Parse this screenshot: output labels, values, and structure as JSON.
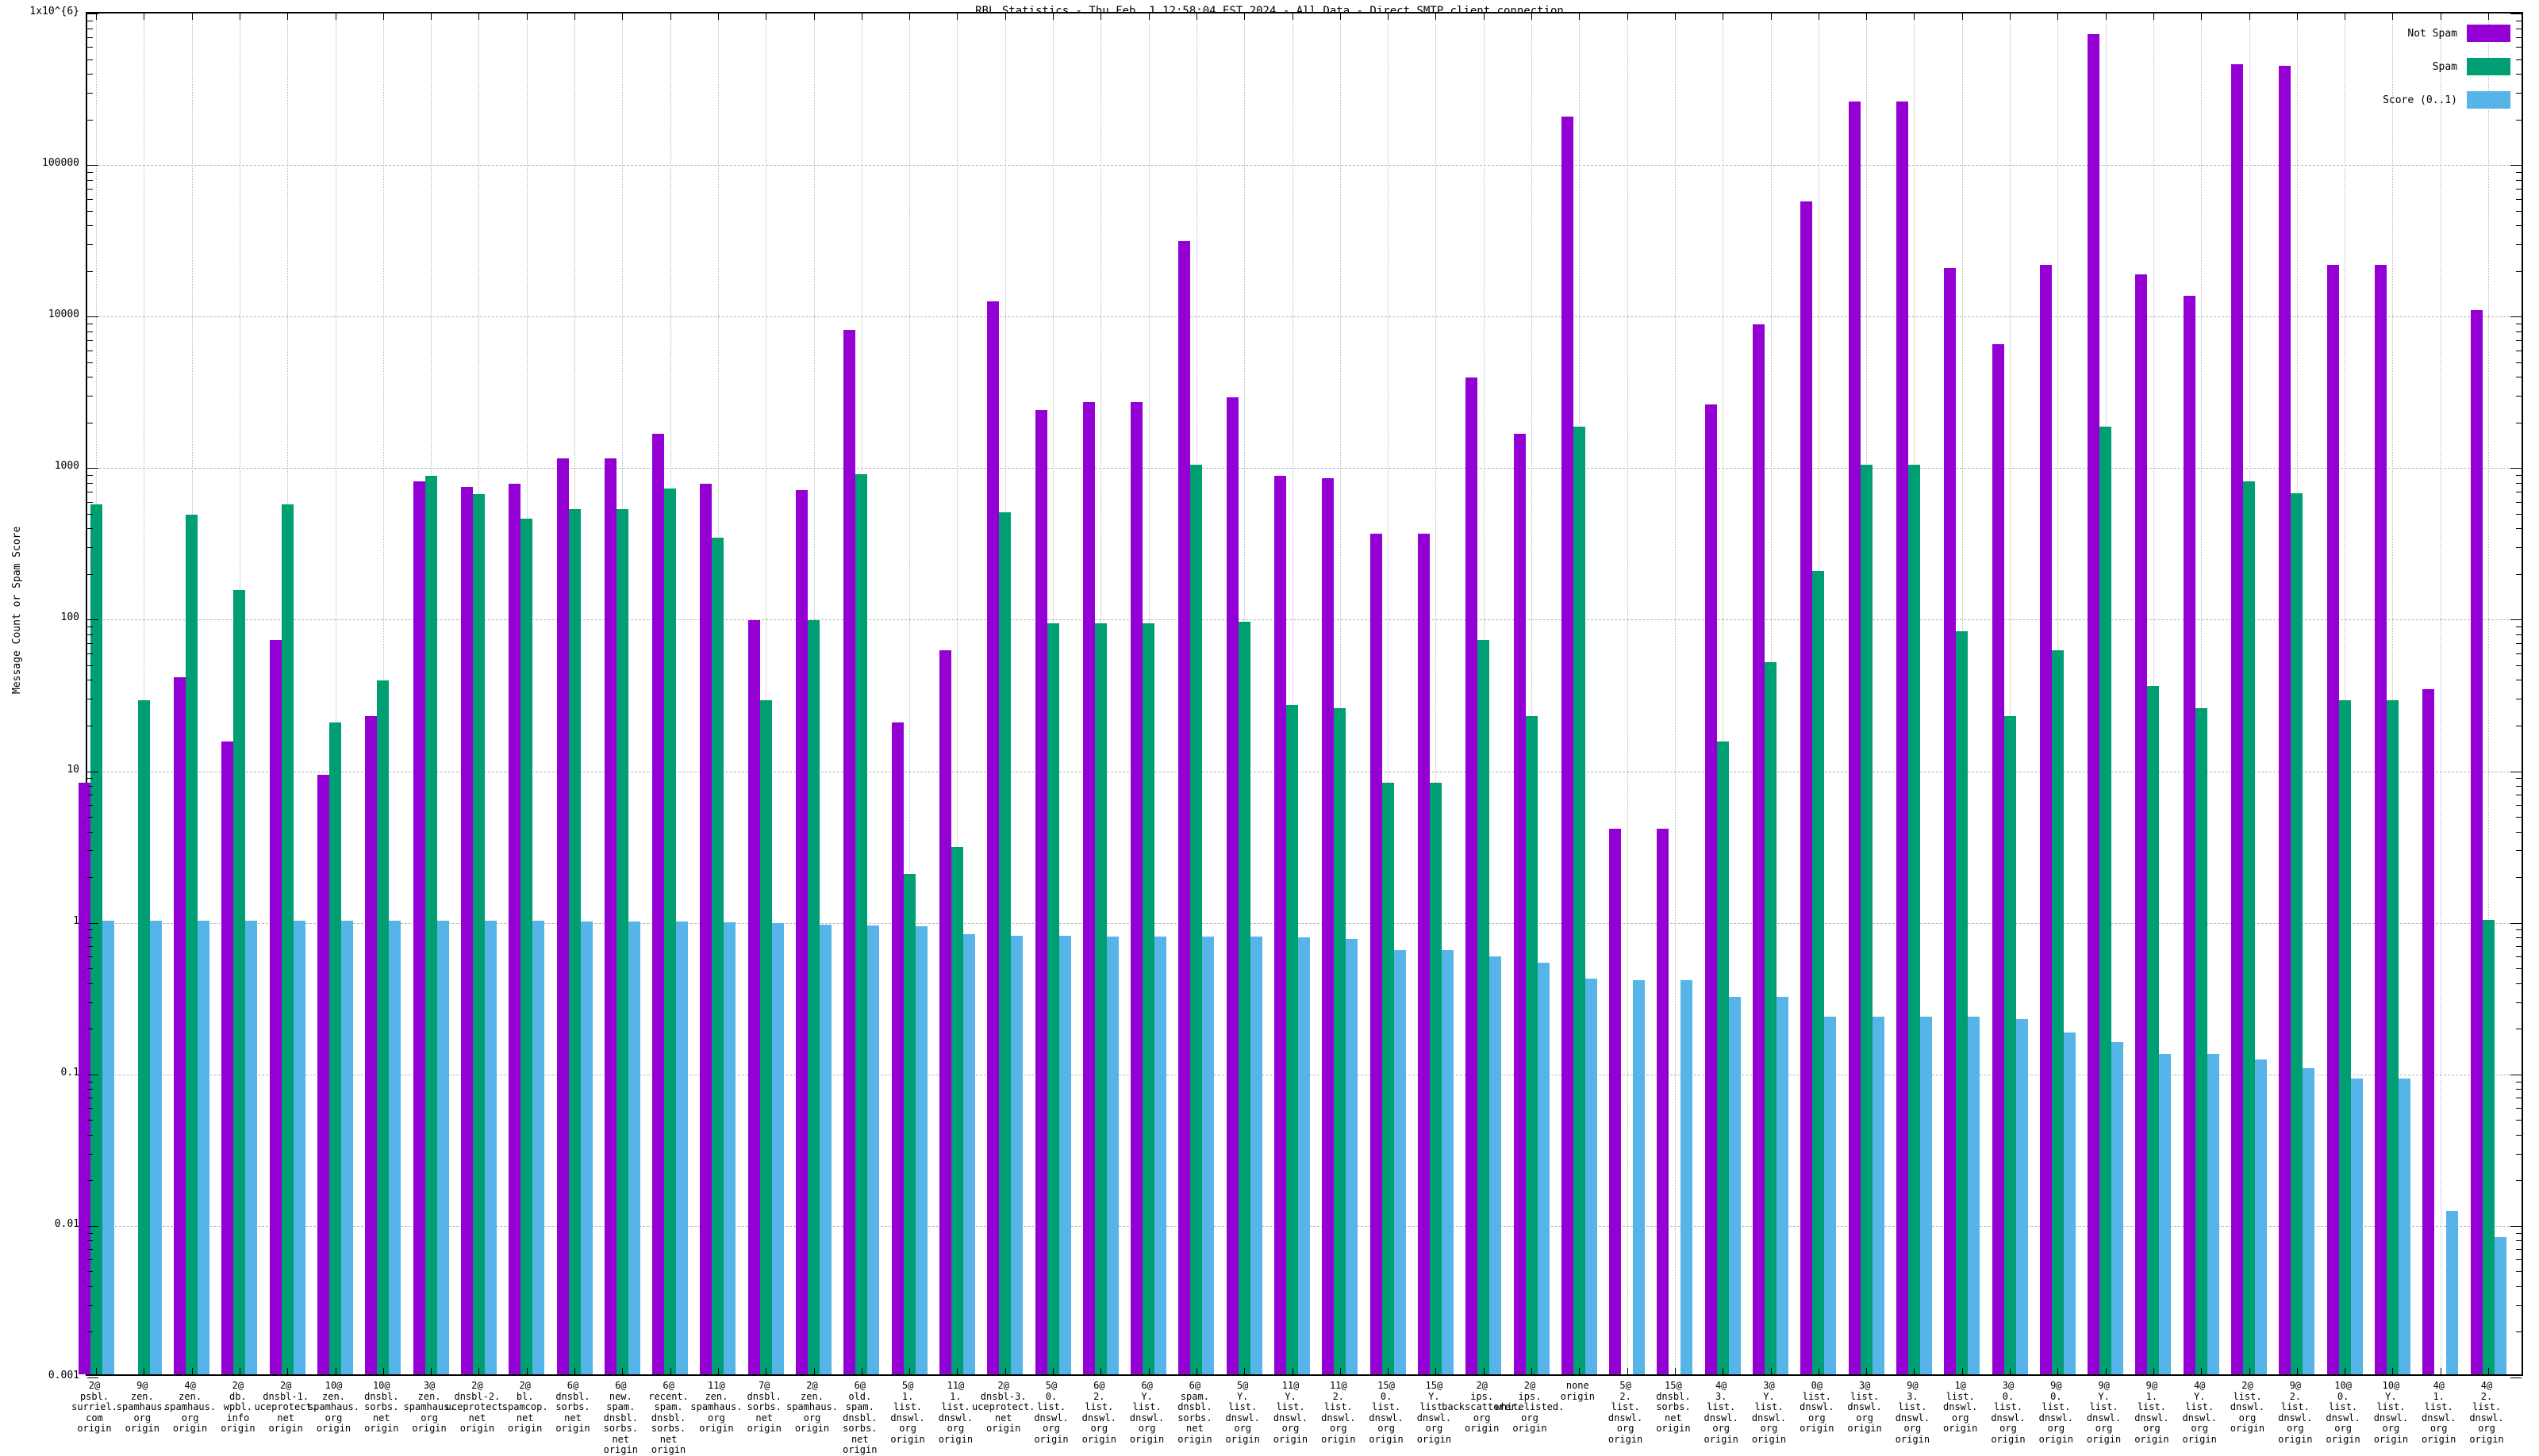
{
  "title": "RBL Statistics - Thu Feb  1 12:58:04 EST 2024 - All Data - Direct SMTP client connection",
  "y_axis": {
    "label": "Message Count or Spam Score",
    "tick_labels": [
      "1x10^{6}",
      "100000",
      "10000",
      "1000",
      "100",
      "10",
      "1",
      "0.1",
      "0.01",
      "0.001"
    ],
    "min_exponent": -3,
    "max_exponent": 6
  },
  "legend": {
    "position": "top-right-inside",
    "entries": [
      {
        "label": "Not Spam",
        "color": "#9400D3"
      },
      {
        "label": "Spam",
        "color": "#009E73"
      },
      {
        "label": "Score (0..1)",
        "color": "#56B4E9"
      }
    ]
  },
  "colors": {
    "not_spam": "#9400D3",
    "spam": "#009E73",
    "score": "#56B4E9",
    "grid": "#b9b9b9",
    "axis": "#000000",
    "background": "#ffffff"
  },
  "chart_data": {
    "type": "bar",
    "scale": "log",
    "ylim": [
      0.001,
      1000000
    ],
    "grid": "on",
    "title": "RBL Statistics - Thu Feb  1 12:58:04 EST 2024 - All Data - Direct SMTP client connection",
    "xlabel": "",
    "ylabel": "Message Count or Spam Score",
    "legend_position": "top-right",
    "categories": [
      [
        "2@",
        "psbl.",
        "surriel.",
        "com",
        "origin"
      ],
      [
        "9@",
        "zen.",
        "spamhaus.",
        "org",
        "origin"
      ],
      [
        "4@",
        "zen.",
        "spamhaus.",
        "org",
        "origin"
      ],
      [
        "2@",
        "db.",
        "wpbl.",
        "info",
        "origin"
      ],
      [
        "2@",
        "dnsbl-1.",
        "uceprotect.",
        "net",
        "origin"
      ],
      [
        "10@",
        "zen.",
        "spamhaus.",
        "org",
        "origin"
      ],
      [
        "10@",
        "dnsbl.",
        "sorbs.",
        "net",
        "origin"
      ],
      [
        "3@",
        "zen.",
        "spamhaus.",
        "org",
        "origin"
      ],
      [
        "2@",
        "dnsbl-2.",
        "uceprotect.",
        "net",
        "origin"
      ],
      [
        "2@",
        "bl.",
        "spamcop.",
        "net",
        "origin"
      ],
      [
        "6@",
        "dnsbl.",
        "sorbs.",
        "net",
        "origin"
      ],
      [
        "6@",
        "new.",
        "spam.",
        "dnsbl.",
        "sorbs.",
        "net",
        "origin"
      ],
      [
        "6@",
        "recent.",
        "spam.",
        "dnsbl.",
        "sorbs.",
        "net",
        "origin"
      ],
      [
        "11@",
        "zen.",
        "spamhaus.",
        "org",
        "origin"
      ],
      [
        "7@",
        "dnsbl.",
        "sorbs.",
        "net",
        "origin"
      ],
      [
        "2@",
        "zen.",
        "spamhaus.",
        "org",
        "origin"
      ],
      [
        "6@",
        "old.",
        "spam.",
        "dnsbl.",
        "sorbs.",
        "net",
        "origin"
      ],
      [
        "5@",
        "1.",
        "list.",
        "dnswl.",
        "org",
        "origin"
      ],
      [
        "11@",
        "1.",
        "list.",
        "dnswl.",
        "org",
        "origin"
      ],
      [
        "2@",
        "dnsbl-3.",
        "uceprotect.",
        "net",
        "origin"
      ],
      [
        "5@",
        "0.",
        "list.",
        "dnswl.",
        "org",
        "origin"
      ],
      [
        "6@",
        "2.",
        "list.",
        "dnswl.",
        "org",
        "origin"
      ],
      [
        "6@",
        "Y.",
        "list.",
        "dnswl.",
        "org",
        "origin"
      ],
      [
        "6@",
        "spam.",
        "dnsbl.",
        "sorbs.",
        "net",
        "origin"
      ],
      [
        "5@",
        "Y.",
        "list.",
        "dnswl.",
        "org",
        "origin"
      ],
      [
        "11@",
        "Y.",
        "list.",
        "dnswl.",
        "org",
        "origin"
      ],
      [
        "11@",
        "2.",
        "list.",
        "dnswl.",
        "org",
        "origin"
      ],
      [
        "15@",
        "0.",
        "list.",
        "dnswl.",
        "org",
        "origin"
      ],
      [
        "15@",
        "Y.",
        "list.",
        "dnswl.",
        "org",
        "origin"
      ],
      [
        "2@",
        "ips.",
        "backscatterer.",
        "org",
        "origin"
      ],
      [
        "2@",
        "ips.",
        "whitelisted.",
        "org",
        "origin"
      ],
      [
        "none",
        "origin"
      ],
      [
        "5@",
        "2.",
        "list.",
        "dnswl.",
        "org",
        "origin"
      ],
      [
        "15@",
        "dnsbl.",
        "sorbs.",
        "net",
        "origin"
      ],
      [
        "4@",
        "3.",
        "list.",
        "dnswl.",
        "org",
        "origin"
      ],
      [
        "3@",
        "Y.",
        "list.",
        "dnswl.",
        "org",
        "origin"
      ],
      [
        "0@",
        "list.",
        "dnswl.",
        "org",
        "origin"
      ],
      [
        "3@",
        "list.",
        "dnswl.",
        "org",
        "origin"
      ],
      [
        "9@",
        "3.",
        "list.",
        "dnswl.",
        "org",
        "origin"
      ],
      [
        "1@",
        "list.",
        "dnswl.",
        "org",
        "origin"
      ],
      [
        "3@",
        "0.",
        "list.",
        "dnswl.",
        "org",
        "origin"
      ],
      [
        "9@",
        "0.",
        "list.",
        "dnswl.",
        "org",
        "origin"
      ],
      [
        "9@",
        "Y.",
        "list.",
        "dnswl.",
        "org",
        "origin"
      ],
      [
        "9@",
        "1.",
        "list.",
        "dnswl.",
        "org",
        "origin"
      ],
      [
        "4@",
        "Y.",
        "list.",
        "dnswl.",
        "org",
        "origin"
      ],
      [
        "2@",
        "list.",
        "dnswl.",
        "org",
        "origin"
      ],
      [
        "9@",
        "2.",
        "list.",
        "dnswl.",
        "org",
        "origin"
      ],
      [
        "10@",
        "0.",
        "list.",
        "dnswl.",
        "org",
        "origin"
      ],
      [
        "10@",
        "Y.",
        "list.",
        "dnswl.",
        "org",
        "origin"
      ],
      [
        "4@",
        "1.",
        "list.",
        "dnswl.",
        "org",
        "origin"
      ],
      [
        "4@",
        "2.",
        "list.",
        "dnswl.",
        "org",
        "origin"
      ]
    ],
    "series": [
      {
        "name": "Not Spam",
        "color": "#9400D3",
        "values": [
          8,
          0,
          40,
          15,
          70,
          9,
          22,
          780,
          720,
          750,
          1100,
          1100,
          1600,
          750,
          95,
          680,
          7800,
          20,
          60,
          12000,
          2300,
          2600,
          2600,
          30000,
          2800,
          850,
          820,
          350,
          350,
          3800,
          1600,
          200000,
          4,
          4,
          2500,
          8500,
          55000,
          250000,
          250000,
          20000,
          6300,
          21000,
          700000,
          18000,
          13000,
          440000,
          430000,
          21000,
          21000,
          33,
          10500
        ]
      },
      {
        "name": "Spam",
        "color": "#009E73",
        "values": [
          550,
          28,
          470,
          150,
          550,
          20,
          38,
          850,
          640,
          440,
          510,
          510,
          700,
          330,
          28,
          95,
          870,
          2,
          3,
          490,
          90,
          90,
          90,
          1000,
          92,
          26,
          25,
          8,
          8,
          70,
          22,
          1800,
          0,
          0,
          15,
          50,
          200,
          1000,
          1000,
          80,
          22,
          60,
          1800,
          35,
          25,
          780,
          650,
          28,
          28,
          0,
          1
        ]
      },
      {
        "name": "Score (0..1)",
        "color": "#56B4E9",
        "values": [
          0.98,
          0.98,
          0.98,
          0.98,
          0.98,
          0.98,
          0.98,
          0.98,
          0.98,
          0.98,
          0.97,
          0.97,
          0.97,
          0.96,
          0.95,
          0.93,
          0.92,
          0.9,
          0.8,
          0.78,
          0.78,
          0.77,
          0.77,
          0.77,
          0.77,
          0.76,
          0.75,
          0.63,
          0.63,
          0.57,
          0.52,
          0.41,
          0.4,
          0.4,
          0.31,
          0.31,
          0.23,
          0.23,
          0.23,
          0.23,
          0.22,
          0.18,
          0.155,
          0.13,
          0.13,
          0.12,
          0.105,
          0.09,
          0.09,
          0.012,
          0.008
        ]
      }
    ]
  }
}
